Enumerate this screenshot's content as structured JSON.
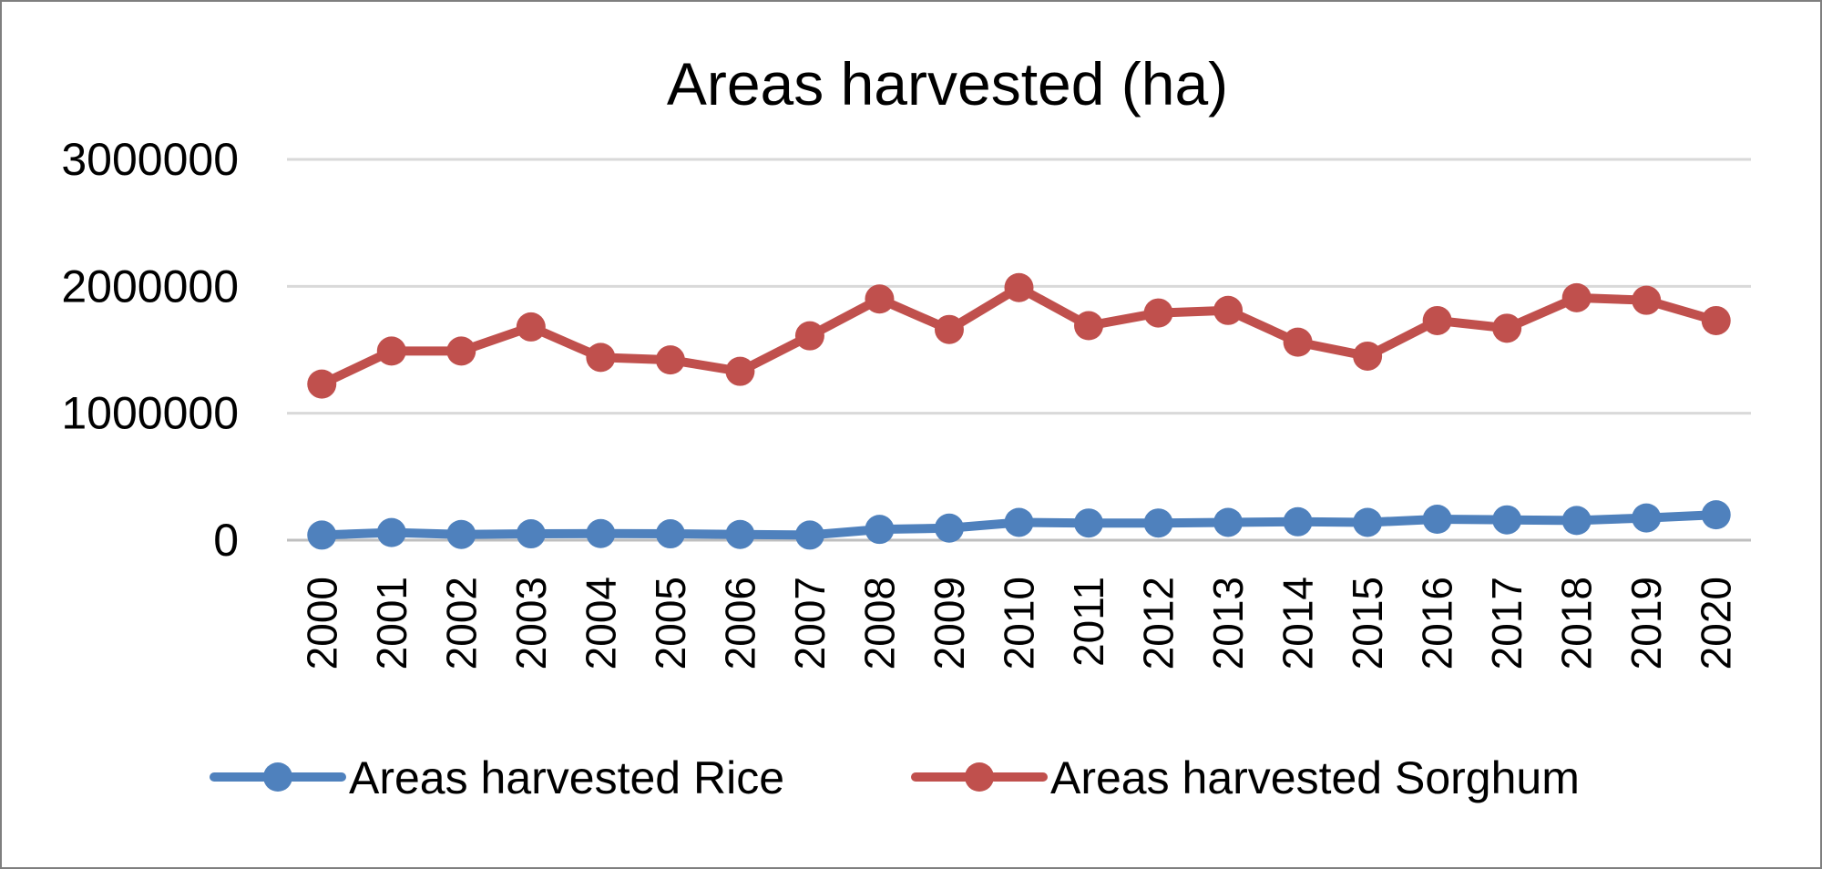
{
  "chart_data": {
    "type": "line",
    "title": "Areas harvested (ha)",
    "xlabel": "",
    "ylabel": "",
    "ylim": [
      0,
      3000000
    ],
    "yticks": [
      "0",
      "1000000",
      "2000000",
      "3000000"
    ],
    "grid": true,
    "legend_position": "bottom",
    "categories": [
      "2000",
      "2001",
      "2002",
      "2003",
      "2004",
      "2005",
      "2006",
      "2007",
      "2008",
      "2009",
      "2010",
      "2011",
      "2012",
      "2013",
      "2014",
      "2015",
      "2016",
      "2017",
      "2018",
      "2019",
      "2020"
    ],
    "series": [
      {
        "name": "Areas harvested Rice",
        "color": "#4f81bd",
        "values": [
          40000,
          60000,
          45000,
          50000,
          52000,
          50000,
          45000,
          40000,
          85000,
          95000,
          140000,
          135000,
          135000,
          140000,
          145000,
          140000,
          165000,
          160000,
          155000,
          175000,
          200000
        ]
      },
      {
        "name": "Areas harvested Sorghum",
        "color": "#c0504d",
        "values": [
          1230000,
          1490000,
          1490000,
          1680000,
          1440000,
          1420000,
          1330000,
          1610000,
          1900000,
          1660000,
          1990000,
          1690000,
          1790000,
          1810000,
          1560000,
          1450000,
          1730000,
          1670000,
          1910000,
          1890000,
          1730000
        ]
      }
    ]
  }
}
